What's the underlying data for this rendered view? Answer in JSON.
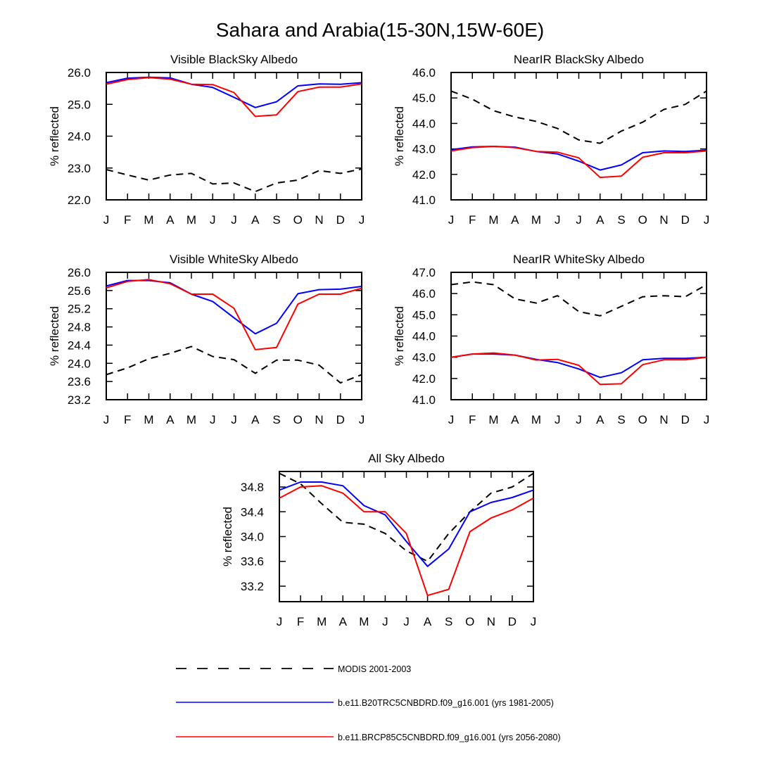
{
  "figure_title": "Sahara and Arabia(15-30N,15W-60E)",
  "colors": {
    "modis": "#000000",
    "b20tr": "#0000ff",
    "brcp85": "#ff0000"
  },
  "legend": [
    {
      "label": "MODIS 2001-2003",
      "style": "dashed",
      "color": "#000000"
    },
    {
      "label": "b.e11.B20TRC5CNBDRD.f09_g16.001 (yrs 1981-2005)",
      "style": "solid",
      "color": "#0000ff"
    },
    {
      "label": "b.e11.BRCP85C5CNBDRD.f09_g16.001 (yrs 2056-2080)",
      "style": "solid",
      "color": "#ff0000"
    }
  ],
  "chart_data": [
    {
      "type": "line",
      "title": "Visible BlackSky Albedo",
      "ylabel": "% reflected",
      "categories": [
        "J",
        "F",
        "M",
        "A",
        "M",
        "J",
        "J",
        "A",
        "S",
        "O",
        "N",
        "D",
        "J"
      ],
      "ylim": [
        22.0,
        26.0
      ],
      "yticks": [
        "22.0",
        "23.0",
        "24.0",
        "25.0",
        "26.0"
      ],
      "series": [
        {
          "name": "MODIS 2001-2003",
          "values": [
            22.95,
            22.78,
            22.62,
            22.78,
            22.83,
            22.5,
            22.53,
            22.26,
            22.53,
            22.62,
            22.92,
            22.83,
            22.97
          ]
        },
        {
          "name": "b.e11.B20TRC5CNBDRD.f09_g16.001 (yrs 1981-2005)",
          "values": [
            25.68,
            25.82,
            25.85,
            25.83,
            25.63,
            25.53,
            25.22,
            24.9,
            25.08,
            25.58,
            25.64,
            25.63,
            25.68
          ]
        },
        {
          "name": "b.e11.BRCP85C5CNBDRD.f09_g16.001 (yrs 2056-2080)",
          "values": [
            25.63,
            25.78,
            25.84,
            25.79,
            25.63,
            25.62,
            25.37,
            24.62,
            24.67,
            25.4,
            25.54,
            25.54,
            25.64
          ]
        }
      ]
    },
    {
      "type": "line",
      "title": "NearIR BlackSky Albedo",
      "ylabel": "% reflected",
      "categories": [
        "J",
        "F",
        "M",
        "A",
        "M",
        "J",
        "J",
        "A",
        "S",
        "O",
        "N",
        "D",
        "J"
      ],
      "ylim": [
        41.0,
        46.0
      ],
      "yticks": [
        "41.0",
        "42.0",
        "43.0",
        "44.0",
        "45.0",
        "46.0"
      ],
      "series": [
        {
          "name": "MODIS 2001-2003",
          "values": [
            45.27,
            44.95,
            44.5,
            44.25,
            44.08,
            43.8,
            43.35,
            43.22,
            43.7,
            44.05,
            44.55,
            44.75,
            45.27
          ]
        },
        {
          "name": "b.e11.B20TRC5CNBDRD.f09_g16.001 (yrs 1981-2005)",
          "values": [
            42.97,
            43.08,
            43.1,
            43.07,
            42.9,
            42.8,
            42.52,
            42.17,
            42.37,
            42.85,
            42.92,
            42.9,
            42.95
          ]
        },
        {
          "name": "b.e11.BRCP85C5CNBDRD.f09_g16.001 (yrs 2056-2080)",
          "values": [
            42.92,
            43.05,
            43.1,
            43.05,
            42.9,
            42.87,
            42.65,
            41.88,
            41.93,
            42.67,
            42.85,
            42.85,
            42.92
          ]
        }
      ]
    },
    {
      "type": "line",
      "title": "Visible WhiteSky Albedo",
      "ylabel": "% reflected",
      "categories": [
        "J",
        "F",
        "M",
        "A",
        "M",
        "J",
        "J",
        "A",
        "S",
        "O",
        "N",
        "D",
        "J"
      ],
      "ylim": [
        23.2,
        26.0
      ],
      "yticks": [
        "23.2",
        "23.6",
        "24.0",
        "24.4",
        "24.8",
        "25.2",
        "25.6",
        "26.0"
      ],
      "series": [
        {
          "name": "MODIS 2001-2003",
          "values": [
            23.75,
            23.9,
            24.1,
            24.22,
            24.37,
            24.15,
            24.08,
            23.78,
            24.07,
            24.07,
            23.96,
            23.57,
            23.75
          ]
        },
        {
          "name": "b.e11.B20TRC5CNBDRD.f09_g16.001 (yrs 1981-2005)",
          "values": [
            25.7,
            25.82,
            25.82,
            25.77,
            25.52,
            25.36,
            25.0,
            24.65,
            24.88,
            25.53,
            25.62,
            25.63,
            25.69
          ]
        },
        {
          "name": "b.e11.BRCP85C5CNBDRD.f09_g16.001 (yrs 2056-2080)",
          "values": [
            25.66,
            25.8,
            25.84,
            25.75,
            25.52,
            25.52,
            25.21,
            24.3,
            24.35,
            25.3,
            25.52,
            25.52,
            25.65
          ]
        }
      ]
    },
    {
      "type": "line",
      "title": "NearIR WhiteSky Albedo",
      "ylabel": "% reflected",
      "categories": [
        "J",
        "F",
        "M",
        "A",
        "M",
        "J",
        "J",
        "A",
        "S",
        "O",
        "N",
        "D",
        "J"
      ],
      "ylim": [
        41.0,
        47.0
      ],
      "yticks": [
        "41.0",
        "42.0",
        "43.0",
        "44.0",
        "45.0",
        "46.0",
        "47.0"
      ],
      "series": [
        {
          "name": "MODIS 2001-2003",
          "values": [
            46.42,
            46.55,
            46.42,
            45.75,
            45.55,
            45.9,
            45.15,
            44.95,
            45.4,
            45.85,
            45.9,
            45.85,
            46.42
          ]
        },
        {
          "name": "b.e11.B20TRC5CNBDRD.f09_g16.001 (yrs 1981-2005)",
          "values": [
            43.0,
            43.15,
            43.15,
            43.1,
            42.9,
            42.75,
            42.45,
            42.05,
            42.27,
            42.88,
            42.95,
            42.95,
            43.0
          ]
        },
        {
          "name": "b.e11.BRCP85C5CNBDRD.f09_g16.001 (yrs 2056-2080)",
          "values": [
            43.0,
            43.15,
            43.2,
            43.1,
            42.87,
            42.9,
            42.62,
            41.72,
            41.75,
            42.65,
            42.88,
            42.88,
            43.0
          ]
        }
      ]
    },
    {
      "type": "line",
      "title": "All Sky Albedo",
      "ylabel": "% reflected",
      "categories": [
        "J",
        "F",
        "M",
        "A",
        "M",
        "J",
        "J",
        "A",
        "S",
        "O",
        "N",
        "D",
        "J"
      ],
      "ylim": [
        32.95,
        35.05
      ],
      "yticks": [
        "33.2",
        "33.6",
        "34.0",
        "34.4",
        "34.8"
      ],
      "series": [
        {
          "name": "MODIS 2001-2003",
          "values": [
            35.02,
            34.85,
            34.53,
            34.23,
            34.2,
            34.05,
            33.77,
            33.6,
            34.05,
            34.4,
            34.7,
            34.8,
            35.02
          ]
        },
        {
          "name": "b.e11.B20TRC5CNBDRD.f09_g16.001 (yrs 1981-2005)",
          "values": [
            34.75,
            34.88,
            34.88,
            34.82,
            34.5,
            34.35,
            33.92,
            33.52,
            33.8,
            34.4,
            34.55,
            34.63,
            34.75
          ]
        },
        {
          "name": "b.e11.BRCP85C5CNBDRD.f09_g16.001 (yrs 2056-2080)",
          "values": [
            34.62,
            34.8,
            34.82,
            34.7,
            34.4,
            34.4,
            34.05,
            33.05,
            33.15,
            34.08,
            34.3,
            34.43,
            34.62
          ]
        }
      ]
    }
  ]
}
